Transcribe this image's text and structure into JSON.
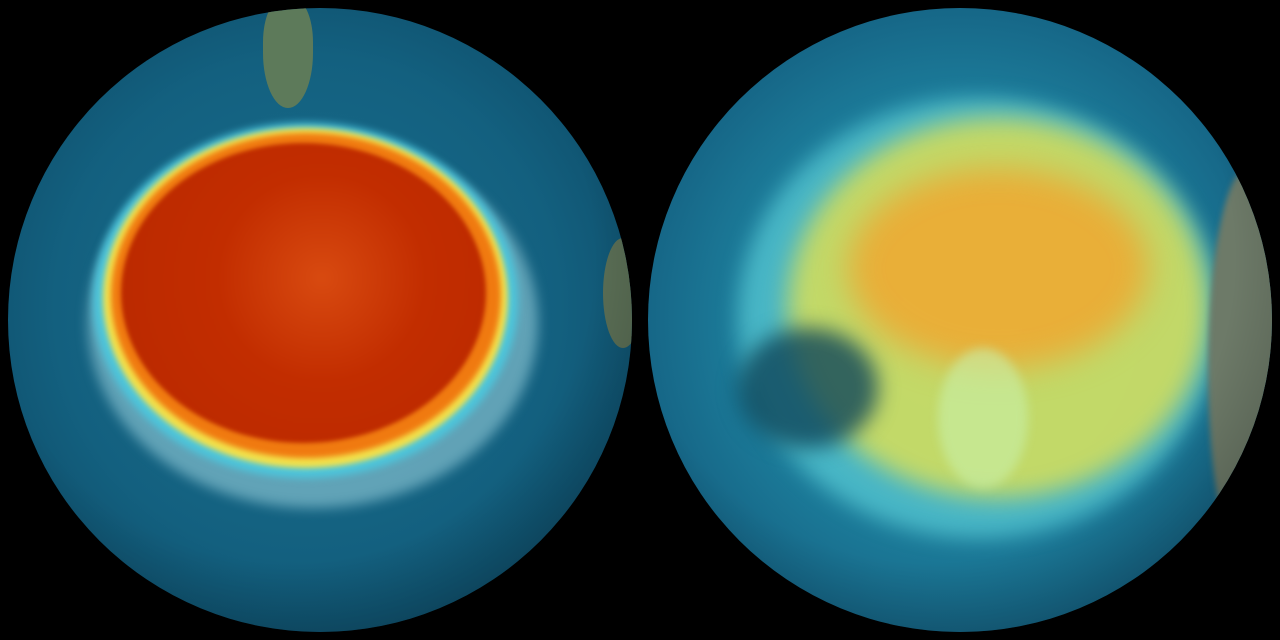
{
  "image": {
    "subject": "two-globes",
    "colors": {
      "background": "#000000",
      "ocean": "#13607f",
      "hole_core": "#c02a00",
      "hole_edge": "#f5e04a",
      "ring_cyan": "#6fd6e6",
      "land": "#5a6e55"
    }
  }
}
